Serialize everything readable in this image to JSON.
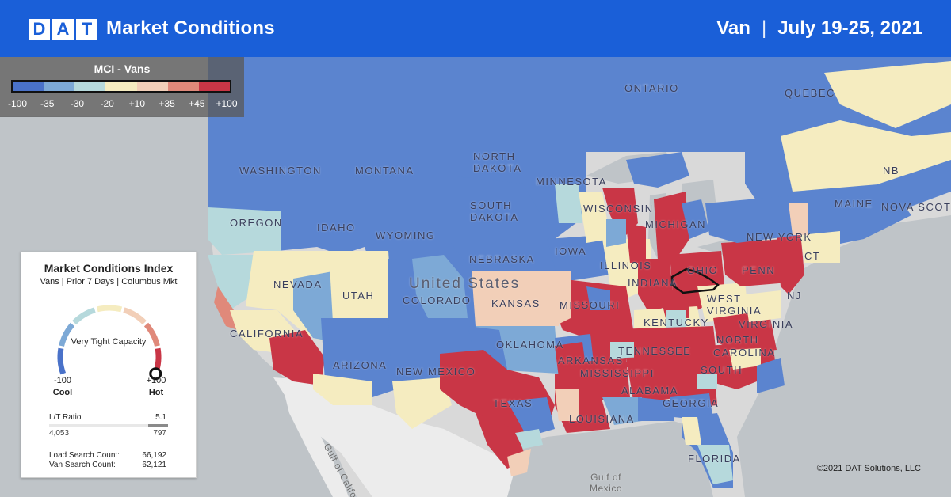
{
  "header": {
    "logo_letters": [
      "D",
      "A",
      "T"
    ],
    "title": "Market Conditions",
    "equipment": "Van",
    "separator": "|",
    "date_range": "July 19-25, 2021"
  },
  "legend": {
    "title": "MCI - Vans",
    "ticks": [
      "-100",
      "-35",
      "-30",
      "-20",
      "+10",
      "+35",
      "+45",
      "+100"
    ],
    "colors": [
      "#4a72c9",
      "#7da9d6",
      "#b6d9dc",
      "#f5ecc0",
      "#f2cfb8",
      "#e0897a",
      "#c93646"
    ]
  },
  "map": {
    "colors": {
      "land": "#ececec",
      "water": "#aab1b8",
      "border": "#ffffff",
      "highlight_outline": "#111111"
    },
    "labels": {
      "ontario": "ONTARIO",
      "quebec": "QUEBEC",
      "north_dakota": "NORTH\nDAKOTA",
      "washington": "WASHINGTON",
      "montana": "MONTANA",
      "minnesota": "MINNESOTA",
      "oregon": "OREGON",
      "idaho": "IDAHO",
      "south_dakota": "SOUTH\nDAKOTA",
      "wisconsin": "WISCONSIN",
      "michigan": "MICHIGAN",
      "new_york": "NEW YORK",
      "maine": "MAINE",
      "nb": "NB",
      "nova_scotia": "NOVA SCOTIA",
      "wyoming": "WYOMING",
      "nebraska": "NEBRASKA",
      "iowa": "IOWA",
      "illinois": "ILLINOIS",
      "indiana": "INDIANA",
      "ohio": "OHIO",
      "penn": "PENN",
      "nevada": "NEVADA",
      "utah": "UTAH",
      "colorado": "COLORADO",
      "kansas": "KANSAS",
      "missouri": "MISSOURI",
      "kentucky": "KENTUCKY",
      "west_virginia": "WEST\nVIRGINIA",
      "virginia": "VIRGINIA",
      "nj": "NJ",
      "ct": "CT",
      "california": "CALIFORNIA",
      "arizona": "ARIZONA",
      "new_mexico": "NEW MEXICO",
      "oklahoma": "OKLAHOMA",
      "arkansas": "ARKANSAS",
      "tennessee": "TENNESSEE",
      "north": "NORTH",
      "carolina": "CAROLINA",
      "mississippi": "MISSISSIPPI",
      "alabama": "ALABAMA",
      "south": "SOUTH",
      "georgia": "GEORGIA",
      "texas": "TEXAS",
      "louisiana": "LOUISIANA",
      "florida": "FLORIDA",
      "united_states": "United States",
      "gulf_of_california": "Gulf of California",
      "gulf_of_mexico": "Gulf of\nMexico"
    }
  },
  "card": {
    "title": "Market Conditions Index",
    "subtitle": "Vans | Prior 7 Days | Columbus Mkt",
    "status": "Very Tight Capacity",
    "gauge_value": 100,
    "gauge_min": "-100",
    "gauge_max": "+100",
    "min_label": "Cool",
    "max_label": "Hot",
    "gauge_colors": [
      "#4a72c9",
      "#7da9d6",
      "#b6d9dc",
      "#f5ecc0",
      "#f2cfb8",
      "#e0897a",
      "#c93646"
    ],
    "lt_label": "L/T Ratio",
    "lt_value": "5.1",
    "lt_loads": "4,053",
    "lt_trucks": "797",
    "load_search_label": "Load Search Count:",
    "load_search_value": "66,192",
    "van_search_label": "Van Search Count:",
    "van_search_value": "62,121"
  },
  "copyright": "©2021 DAT Solutions, LLC"
}
